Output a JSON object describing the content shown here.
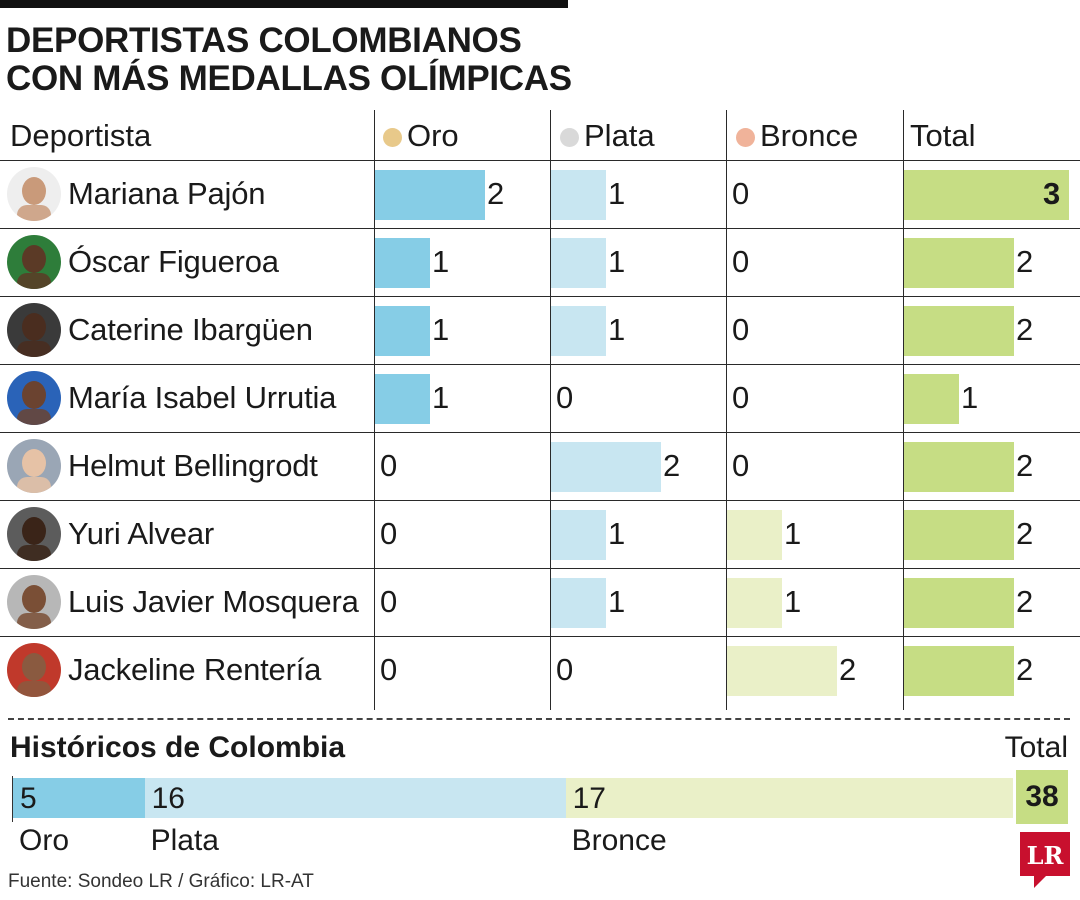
{
  "title_lines": [
    "DEPORTISTAS COLOMBIANOS",
    "CON MÁS MEDALLAS OLÍMPICAS"
  ],
  "columns": {
    "athlete": "Deportista",
    "gold": "Oro",
    "silver": "Plata",
    "bronze": "Bronce",
    "total": "Total"
  },
  "colors": {
    "gold_dot": "#e8c98a",
    "silver_dot": "#d9d9d9",
    "bronze_dot": "#f0b39a",
    "gold_bar": "#86cde6",
    "silver_bar": "#c8e6f1",
    "bronze_bar": "#eaf0c8",
    "total_bar": "#c6dd84",
    "logo_red": "#c8102e"
  },
  "chart_data": [
    {
      "type": "bar",
      "categories": [
        "Mariana Pajón",
        "Óscar Figueroa",
        "Caterine Ibargüen",
        "María Isabel Urrutia",
        "Helmut Bellingrodt",
        "Yuri Alvear",
        "Luis Javier Mosquera",
        "Jackeline Rentería"
      ],
      "series": [
        {
          "name": "Oro",
          "values": [
            2,
            1,
            1,
            1,
            0,
            0,
            0,
            0
          ]
        },
        {
          "name": "Plata",
          "values": [
            1,
            1,
            1,
            0,
            2,
            1,
            1,
            0
          ]
        },
        {
          "name": "Bronce",
          "values": [
            0,
            0,
            0,
            0,
            0,
            1,
            1,
            2
          ]
        },
        {
          "name": "Total",
          "values": [
            3,
            2,
            2,
            1,
            2,
            2,
            2,
            2
          ]
        }
      ],
      "legend": "top"
    },
    {
      "type": "bar",
      "title": "Históricos de Colombia",
      "categories": [
        "Oro",
        "Plata",
        "Bronce"
      ],
      "values": [
        5,
        16,
        17
      ],
      "total_label": "Total",
      "total": 38
    }
  ],
  "source": "Fuente: Sondeo LR / Gráfico: LR-AT",
  "logo": {
    "text": "LR",
    "icon": "lr-logo-icon"
  }
}
